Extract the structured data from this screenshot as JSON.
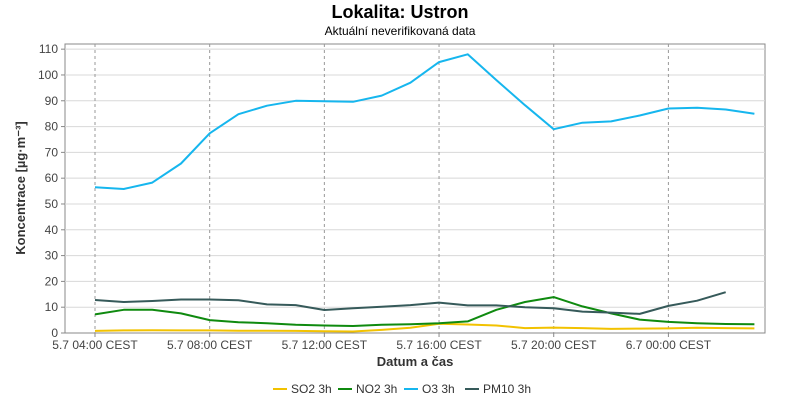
{
  "chart_data": {
    "type": "line",
    "title": "Lokalita: Ustron",
    "subtitle": "Aktuální neverifikovaná data",
    "xlabel": "Datum a čas",
    "ylabel": "Koncentrace [µg·m⁻³]",
    "ylim": [
      0,
      112
    ],
    "yticks": [
      0,
      10,
      20,
      30,
      40,
      50,
      60,
      70,
      80,
      90,
      100,
      110
    ],
    "x": [
      "5.7 04:00",
      "5.7 05:00",
      "5.7 06:00",
      "5.7 07:00",
      "5.7 08:00",
      "5.7 09:00",
      "5.7 10:00",
      "5.7 11:00",
      "5.7 12:00",
      "5.7 13:00",
      "5.7 14:00",
      "5.7 15:00",
      "5.7 16:00",
      "5.7 17:00",
      "5.7 18:00",
      "5.7 19:00",
      "5.7 20:00",
      "5.7 21:00",
      "5.7 22:00",
      "5.7 23:00",
      "6.7 00:00",
      "6.7 01:00",
      "6.7 02:00",
      "6.7 03:00"
    ],
    "xticks": [
      "5.7 04:00 CEST",
      "5.7 08:00 CEST",
      "5.7 12:00 CEST",
      "5.7 16:00 CEST",
      "5.7 20:00 CEST",
      "6.7 00:00 CEST"
    ],
    "grid": true,
    "legend_position": "bottom",
    "series": [
      {
        "name": "SO2 3h",
        "color": "#f2c200",
        "values": [
          0.8,
          1.0,
          1.1,
          1.0,
          1.0,
          0.9,
          0.9,
          0.8,
          0.7,
          0.6,
          1.2,
          2.0,
          3.6,
          3.3,
          2.9,
          1.9,
          2.1,
          1.9,
          1.6,
          1.7,
          1.8,
          2.0,
          1.9,
          1.8
        ]
      },
      {
        "name": "NO2 3h",
        "color": "#0f8a0f",
        "values": [
          7.2,
          9.0,
          9.0,
          7.6,
          5.0,
          4.2,
          3.8,
          3.2,
          2.9,
          2.7,
          3.2,
          3.4,
          3.8,
          4.5,
          9.0,
          12.0,
          13.9,
          10.3,
          7.6,
          5.2,
          4.3,
          3.8,
          3.5,
          3.4
        ]
      },
      {
        "name": "O3 3h",
        "color": "#16b6ee",
        "values": [
          56.5,
          55.8,
          58.3,
          65.7,
          77.4,
          84.8,
          88.1,
          90.0,
          89.8,
          89.6,
          92.0,
          97.0,
          105.0,
          108.0,
          98.0,
          88.3,
          79.0,
          81.5,
          82.0,
          84.3,
          87.0,
          87.3,
          86.6,
          85.0
        ]
      },
      {
        "name": "PM10 3h",
        "color": "#365a5a",
        "values": [
          12.8,
          12.0,
          12.4,
          13.0,
          13.0,
          12.7,
          11.1,
          10.8,
          8.9,
          9.6,
          10.2,
          10.8,
          11.8,
          10.7,
          10.7,
          10.0,
          9.6,
          8.3,
          7.9,
          7.4,
          10.5,
          12.5,
          15.8,
          null
        ]
      }
    ]
  }
}
